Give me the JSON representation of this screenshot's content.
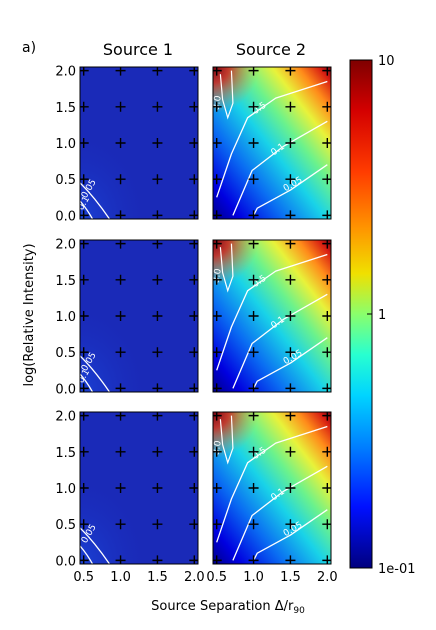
{
  "figure": {
    "panel_label": "a)",
    "column_titles": [
      "Source 1",
      "Source 2"
    ],
    "xlabel": "Source Separation Δ/r",
    "xlabel_sub": "90",
    "ylabel": "log(Relative Intensity)"
  },
  "colorbar": {
    "scale": "log",
    "range": [
      0.1,
      10
    ],
    "tick_labels": [
      "10",
      "1",
      "1e-01"
    ],
    "tick_values": [
      10,
      1,
      0.1
    ],
    "colormap": "jet"
  },
  "chart_data": {
    "type": "heatmap",
    "xlim": [
      0.45,
      2.05
    ],
    "ylim": [
      -0.05,
      2.05
    ],
    "x_ticks": [
      0.5,
      1.0,
      1.5,
      2.0
    ],
    "x_tick_labels": [
      "0.5",
      "1.0",
      "1.5",
      "2.0"
    ],
    "y_ticks": [
      0.0,
      0.5,
      1.0,
      1.5,
      2.0
    ],
    "y_tick_labels": [
      "0.0",
      "0.5",
      "1.0",
      "1.5",
      "2.0"
    ],
    "grid_points_x": [
      0.5,
      1.0,
      1.5,
      2.0
    ],
    "grid_points_y": [
      0.0,
      0.5,
      1.0,
      1.5,
      2.0
    ],
    "panels": [
      {
        "row": 1,
        "column": "Source 1",
        "contour_labels": [
          "0.05",
          "0.1"
        ]
      },
      {
        "row": 1,
        "column": "Source 2",
        "contour_labels": [
          "3.0",
          "0.5",
          "0.1",
          "0.05"
        ]
      },
      {
        "row": 2,
        "column": "Source 1",
        "contour_labels": [
          "0.05",
          "0.1"
        ]
      },
      {
        "row": 2,
        "column": "Source 2",
        "contour_labels": [
          "3.0",
          "0.5",
          "0.1",
          "0.05"
        ]
      },
      {
        "row": 3,
        "column": "Source 1",
        "contour_labels": [
          "0.05"
        ]
      },
      {
        "row": 3,
        "column": "Source 2",
        "contour_labels": [
          "3.0",
          "0.5",
          "0.1",
          "0.05"
        ]
      }
    ]
  }
}
